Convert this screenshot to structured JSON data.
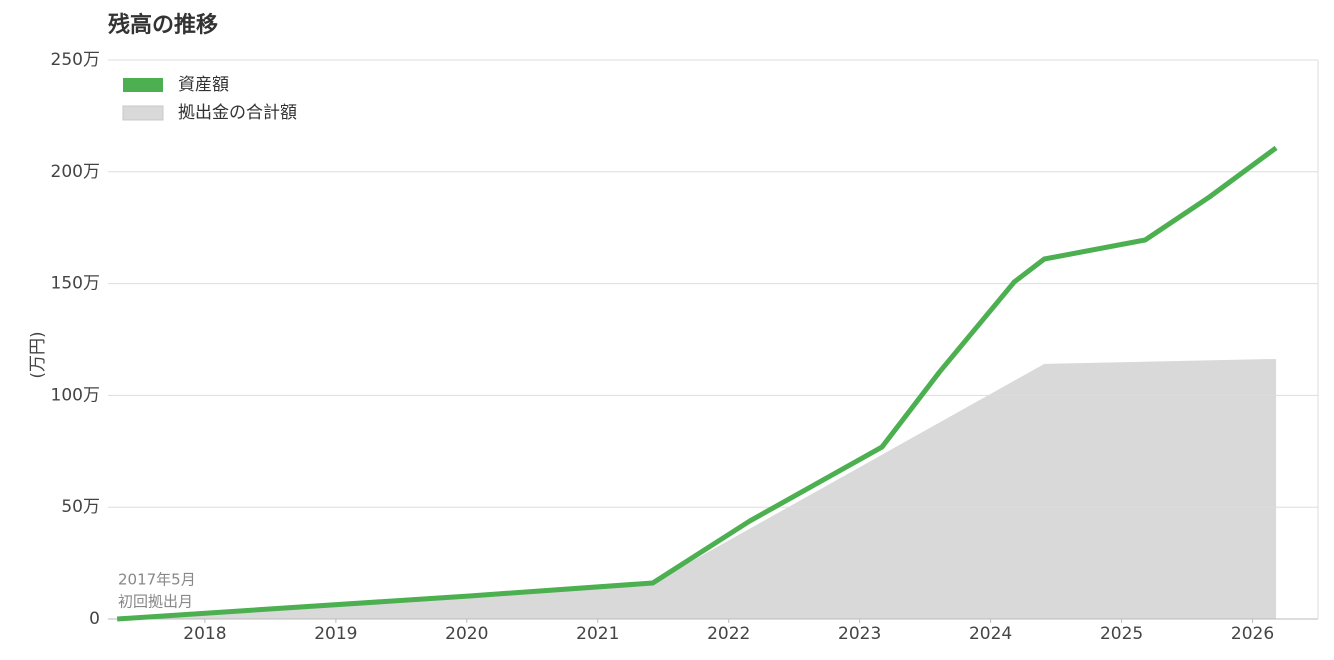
{
  "chart_data": {
    "type": "line",
    "title": "残高の推移",
    "ylabel": "(万円)",
    "annotation": [
      "2017年5月",
      "初回拠出月"
    ],
    "xlim": [
      2017.26,
      2026.5
    ],
    "xticks": [
      2018,
      2019,
      2020,
      2021,
      2022,
      2023,
      2024,
      2025,
      2026
    ],
    "ylim": [
      0,
      250
    ],
    "yticks": [
      0,
      {
        "value": 50,
        "label": "50万"
      },
      {
        "value": 100,
        "label": "100万"
      },
      {
        "value": 150,
        "label": "150万"
      },
      {
        "value": 200,
        "label": "200万"
      },
      {
        "value": 250,
        "label": "250万"
      }
    ],
    "grid": true,
    "legend": "top-left",
    "series": [
      {
        "name": "資産額",
        "color": "#4caf50",
        "style": "line",
        "x": [
          2017.33,
          2020.02,
          2021.42,
          2022.16,
          2023.17,
          2023.61,
          2024.18,
          2024.41,
          2025.18,
          2025.67,
          2026.18
        ],
        "values": [
          0,
          10.3,
          16.1,
          43.8,
          76.9,
          110.5,
          150.7,
          161.0,
          169.5,
          188.7,
          210.7
        ]
      },
      {
        "name": "拠出金の合計額",
        "color": "#d9d9d9",
        "style": "area",
        "x": [
          2017.33,
          2020.02,
          2021.42,
          2024.41,
          2026.18
        ],
        "values": [
          0,
          10.3,
          16.1,
          114.1,
          116.3
        ]
      }
    ]
  }
}
